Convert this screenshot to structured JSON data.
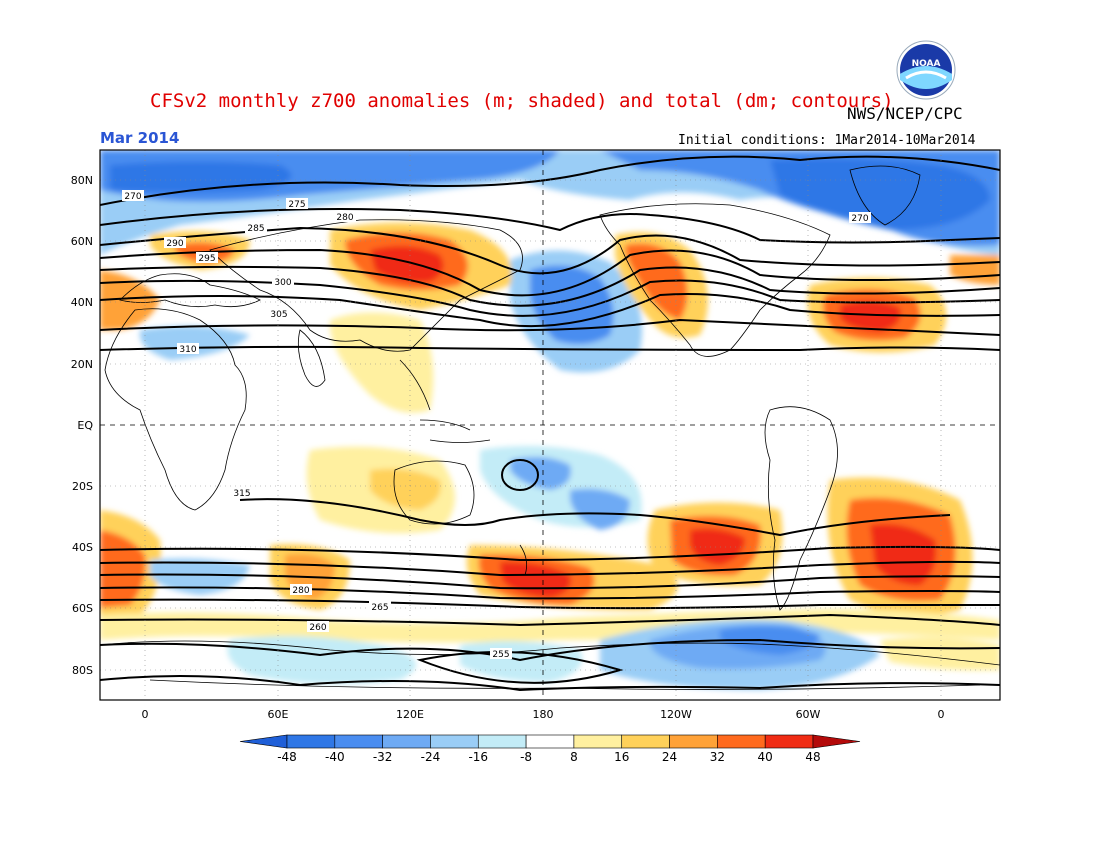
{
  "header": {
    "title": "CFSv2 monthly z700 anomalies (m; shaded) and total (dm; contours)",
    "agency": "NWS/NCEP/CPC",
    "month": "Mar 2014",
    "initial_conditions": "Initial conditions: 1Mar2014-10Mar2014",
    "logo_text": "NOAA"
  },
  "map": {
    "lat_labels": [
      "80N",
      "60N",
      "40N",
      "20N",
      "EQ",
      "20S",
      "40S",
      "60S",
      "80S"
    ],
    "lon_labels": [
      "0",
      "60E",
      "120E",
      "180",
      "120W",
      "60W",
      "0"
    ],
    "contour_labels": [
      "270",
      "270",
      "275",
      "280",
      "285",
      "290",
      "295",
      "300",
      "305",
      "310",
      "315",
      "280",
      "265",
      "260",
      "255"
    ],
    "colors": {
      "border": "#000000",
      "dashed_grid": "#000000",
      "coast": "#000000"
    }
  },
  "colorbar": {
    "ticks": [
      "-48",
      "-40",
      "-32",
      "-24",
      "-16",
      "-8",
      "8",
      "16",
      "24",
      "32",
      "40",
      "48"
    ],
    "colors": [
      "#1f5fd8",
      "#2f77e6",
      "#4a8df0",
      "#6eaaf4",
      "#9acdf6",
      "#c3ecf7",
      "#ffffff",
      "#fff0a0",
      "#ffd15a",
      "#ffa238",
      "#ff6a1e",
      "#f02c14",
      "#b40a0a"
    ]
  }
}
